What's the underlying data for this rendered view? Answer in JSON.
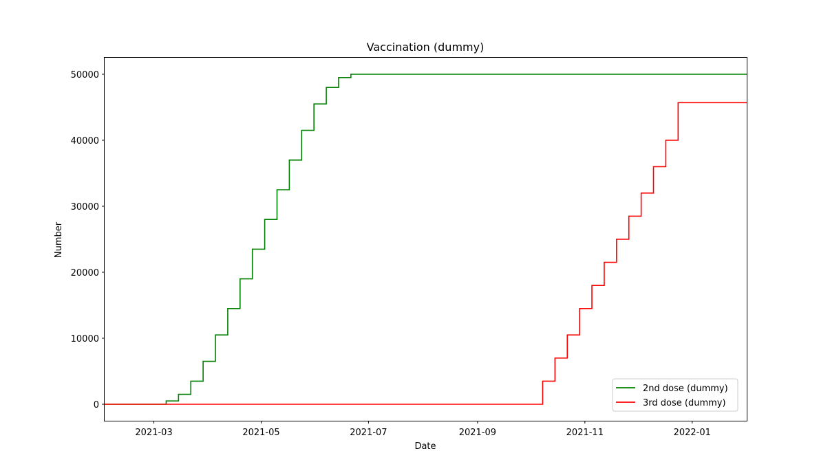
{
  "chart_data": {
    "type": "line",
    "title": "Vaccination (dummy)",
    "xlabel": "Date",
    "ylabel": "Number",
    "xlim": [
      "2021-02-01",
      "2022-02-01"
    ],
    "ylim": [
      -2500,
      52500
    ],
    "x_ticks": [
      "2021-03",
      "2021-05",
      "2021-07",
      "2021-09",
      "2021-11",
      "2022-01"
    ],
    "y_ticks": [
      0,
      10000,
      20000,
      30000,
      40000,
      50000
    ],
    "grid": false,
    "legend_position": "lower-right",
    "step": true,
    "series": [
      {
        "name": "2nd dose (dummy)",
        "color": "#008000",
        "x": [
          "2021-02-01",
          "2021-03-01",
          "2021-03-08",
          "2021-03-15",
          "2021-03-22",
          "2021-03-29",
          "2021-04-05",
          "2021-04-12",
          "2021-04-19",
          "2021-04-26",
          "2021-05-03",
          "2021-05-10",
          "2021-05-17",
          "2021-05-24",
          "2021-05-31",
          "2021-06-07",
          "2021-06-14",
          "2021-06-21",
          "2022-02-01"
        ],
        "values": [
          0,
          0,
          500,
          1500,
          3500,
          6500,
          10500,
          14500,
          19000,
          23500,
          28000,
          32500,
          37000,
          41500,
          45500,
          48000,
          49500,
          50000,
          50000
        ]
      },
      {
        "name": "3rd dose (dummy)",
        "color": "#ff0000",
        "x": [
          "2021-02-01",
          "2021-10-01",
          "2021-10-08",
          "2021-10-15",
          "2021-10-22",
          "2021-10-29",
          "2021-11-05",
          "2021-11-12",
          "2021-11-19",
          "2021-11-26",
          "2021-12-03",
          "2021-12-10",
          "2021-12-17",
          "2021-12-24",
          "2022-02-01"
        ],
        "values": [
          0,
          0,
          3500,
          7000,
          10500,
          14500,
          18000,
          21500,
          25000,
          28500,
          32000,
          36000,
          40000,
          45700,
          45700
        ]
      }
    ]
  }
}
